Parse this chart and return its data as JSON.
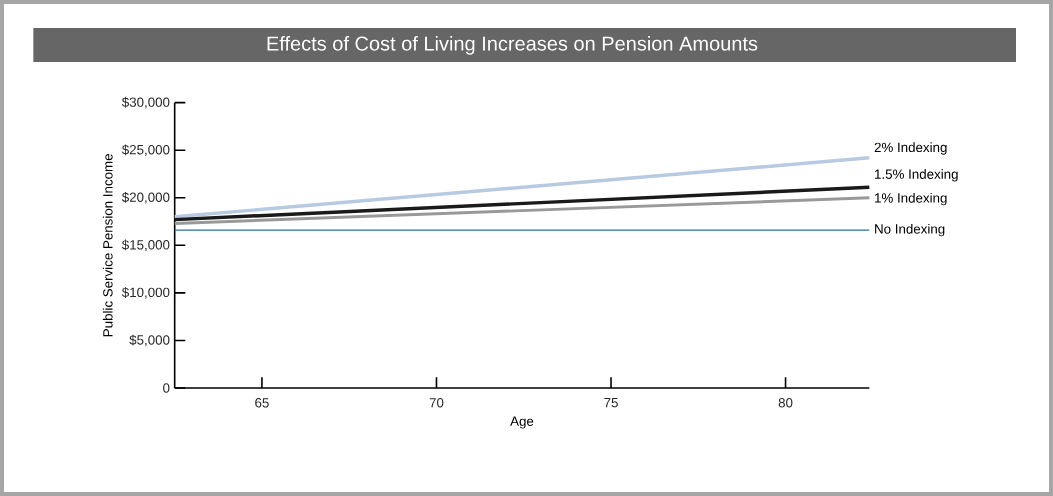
{
  "chart_data": {
    "type": "line",
    "title": "Effects of Cost of Living Increases on Pension Amounts",
    "xlabel": "Age",
    "ylabel": "Public Service Pension Income",
    "xlim": [
      62.5,
      82.4
    ],
    "ylim": [
      0,
      30000
    ],
    "xticks": [
      65,
      70,
      75,
      80
    ],
    "x": [
      62.5,
      82.4
    ],
    "yticks": [
      {
        "value": 0,
        "label": "0"
      },
      {
        "value": 5000,
        "label": "$5,000"
      },
      {
        "value": 10000,
        "label": "$10,000"
      },
      {
        "value": 15000,
        "label": "$15,000"
      },
      {
        "value": 20000,
        "label": "$20,000"
      },
      {
        "value": 25000,
        "label": "$25,000"
      },
      {
        "value": 30000,
        "label": "$30,000"
      }
    ],
    "series": [
      {
        "name": "2% Indexing",
        "color": "#b8c9e2",
        "values": [
          18000,
          24200
        ]
      },
      {
        "name": "1.5% Indexing",
        "color": "#1a1a1a",
        "values": [
          17700,
          21100
        ]
      },
      {
        "name": "1% Indexing",
        "color": "#999999",
        "values": [
          17300,
          20000
        ]
      },
      {
        "name": "No Indexing",
        "color": "#1f6fb0",
        "values": [
          16600,
          16600
        ]
      }
    ]
  }
}
